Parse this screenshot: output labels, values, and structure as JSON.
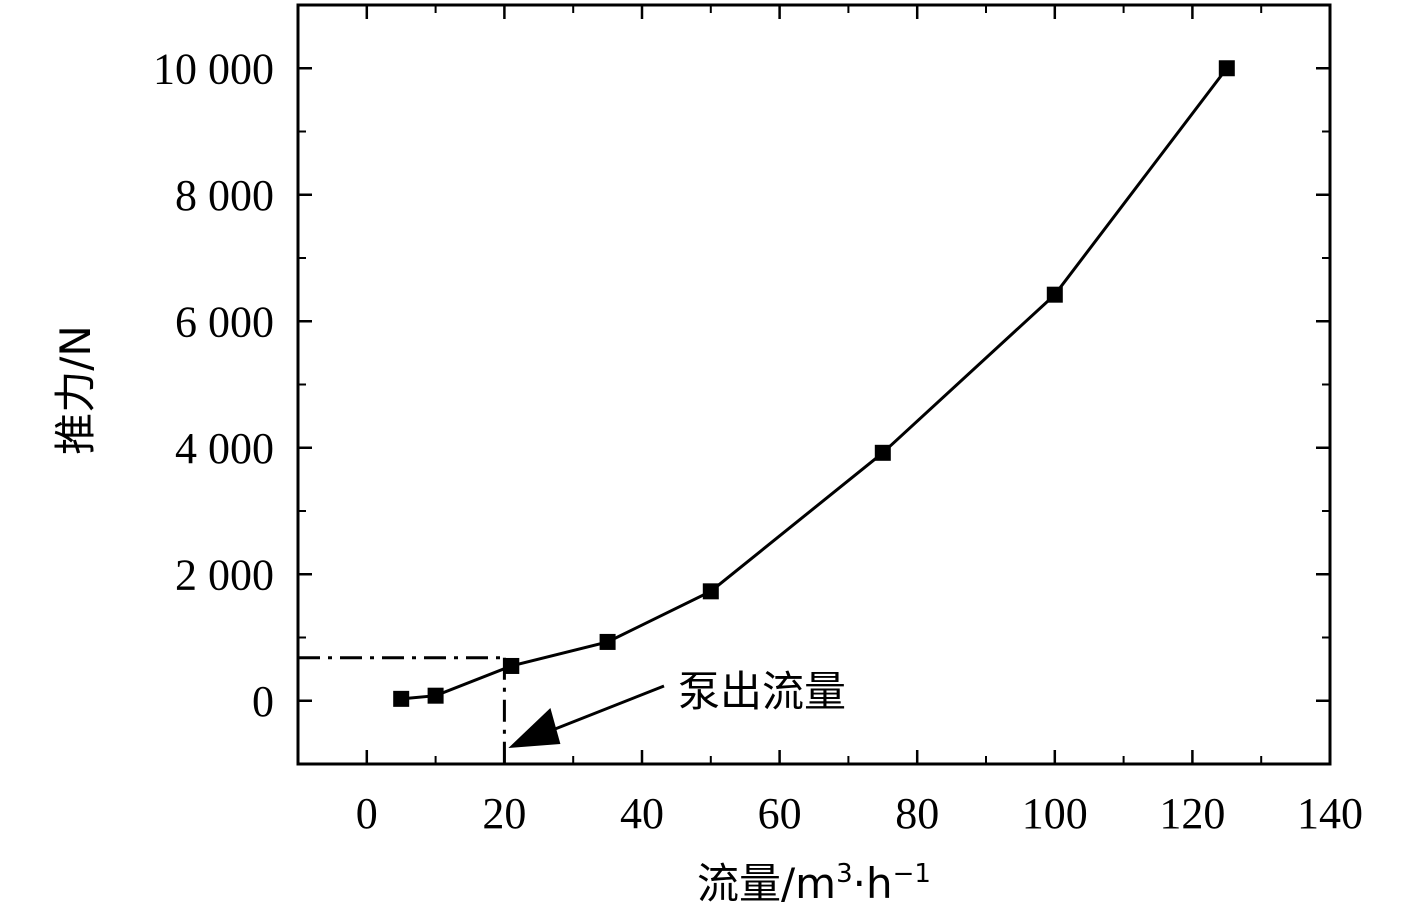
{
  "chart_data": {
    "type": "line",
    "xlabel": "流量/m",
    "xlabel_sup1": "3",
    "xlabel_mid": "·h",
    "xlabel_sup2": "−1",
    "ylabel": "推力/N",
    "xlim": [
      -10,
      140
    ],
    "ylim": [
      -1000,
      11000
    ],
    "x_ticks": [
      0,
      20,
      40,
      60,
      80,
      100,
      120,
      140
    ],
    "x_tick_labels": [
      "0",
      "20",
      "40",
      "60",
      "80",
      "100",
      "120",
      "140"
    ],
    "y_ticks": [
      0,
      2000,
      4000,
      6000,
      8000,
      10000
    ],
    "y_tick_labels": [
      "0",
      "2 000",
      "4 000",
      "6 000",
      "8 000",
      "10 000"
    ],
    "grid": false,
    "series": [
      {
        "x": [
          5,
          10,
          21,
          35,
          50,
          75,
          100,
          125
        ],
        "y": [
          30,
          80,
          550,
          930,
          1730,
          3920,
          6420,
          10000
        ],
        "marker": "square",
        "color": "#000000"
      }
    ],
    "reference_point": {
      "x": 20,
      "y": 680
    },
    "annotation": {
      "text": "泵出流量",
      "target_x": 20
    }
  }
}
